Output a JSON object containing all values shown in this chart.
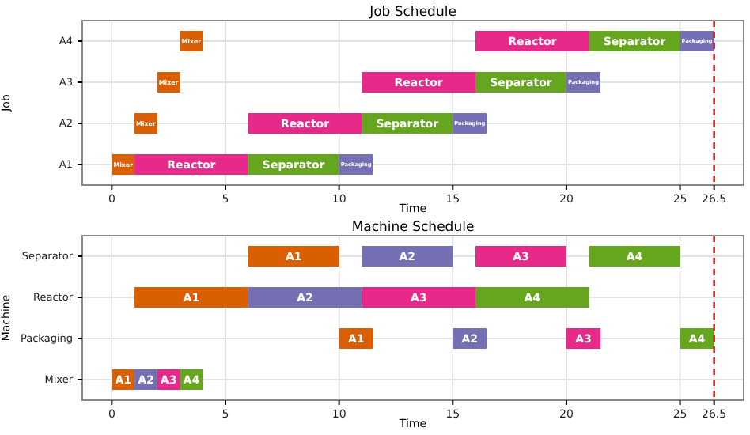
{
  "chart_data": [
    {
      "type": "bar",
      "title": "Job Schedule",
      "xlabel": "Time",
      "ylabel": "Job",
      "orientation": "horizontal",
      "categories": [
        "A4",
        "A3",
        "A2",
        "A1"
      ],
      "xlim": [
        -1.3,
        27.8
      ],
      "xticks": [
        0,
        5,
        10,
        15,
        20,
        25,
        26.5
      ],
      "grid": true,
      "legend": false,
      "series": [
        {
          "name": "Mixer",
          "color": "#d95f02",
          "base": [
            3,
            2,
            1,
            0
          ],
          "values": [
            1,
            1,
            1,
            1
          ]
        },
        {
          "name": "Reactor",
          "color": "#e7298a",
          "base": [
            16,
            11,
            6,
            1
          ],
          "values": [
            5,
            5,
            5,
            5
          ]
        },
        {
          "name": "Separator",
          "color": "#66a61e",
          "base": [
            21,
            16,
            11,
            6
          ],
          "values": [
            4,
            4,
            4,
            4
          ]
        },
        {
          "name": "Packaging",
          "color": "#7570b3",
          "base": [
            25,
            20,
            15,
            10
          ],
          "values": [
            1.5,
            1.5,
            1.5,
            1.5
          ]
        }
      ],
      "ref_lines": [
        {
          "axis": "x",
          "value": 26.5,
          "color": "#e41a1c",
          "line_style": "dashed"
        }
      ]
    },
    {
      "type": "bar",
      "title": "Machine Schedule",
      "xlabel": "Time",
      "ylabel": "Machine",
      "orientation": "horizontal",
      "categories": [
        "Separator",
        "Reactor",
        "Packaging",
        "Mixer"
      ],
      "xlim": [
        -1.3,
        27.8
      ],
      "xticks": [
        0,
        5,
        10,
        15,
        20,
        25,
        26.5
      ],
      "grid": true,
      "legend": false,
      "series": [
        {
          "name": "A1",
          "color": "#d95f02",
          "base": [
            6,
            1,
            10,
            0
          ],
          "values": [
            4,
            5,
            1.5,
            1
          ]
        },
        {
          "name": "A2",
          "color": "#7570b3",
          "base": [
            11,
            6,
            15,
            1
          ],
          "values": [
            4,
            5,
            1.5,
            1
          ]
        },
        {
          "name": "A3",
          "color": "#e7298a",
          "base": [
            16,
            11,
            20,
            2
          ],
          "values": [
            4,
            5,
            1.5,
            1
          ]
        },
        {
          "name": "A4",
          "color": "#66a61e",
          "base": [
            21,
            16,
            25,
            3
          ],
          "values": [
            4,
            5,
            1.5,
            1
          ]
        }
      ],
      "ref_lines": [
        {
          "axis": "x",
          "value": 26.5,
          "color": "#e41a1c",
          "line_style": "dashed"
        }
      ]
    }
  ]
}
